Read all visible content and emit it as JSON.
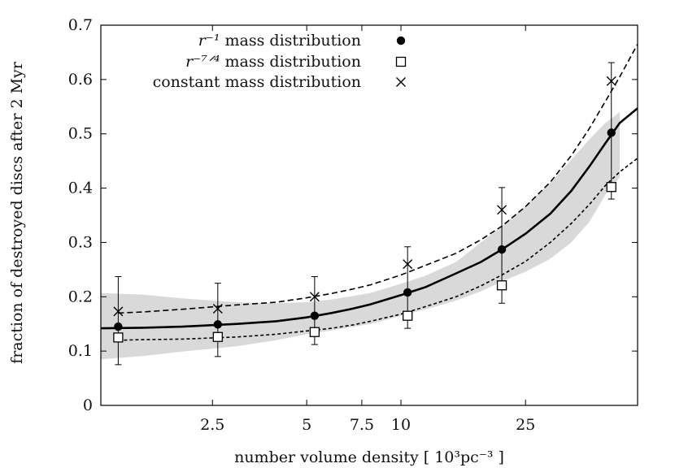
{
  "chart_data": {
    "type": "scatter",
    "title": "",
    "xlabel": "number volume density [ 10³pc⁻³ ]",
    "ylabel": "fraction of destroyed discs after 2 Myr",
    "x_scale": "log",
    "xlim": [
      1.1,
      57
    ],
    "ylim": [
      0,
      0.7
    ],
    "x_ticks": [
      2.5,
      5,
      7.5,
      10,
      25
    ],
    "x_tick_labels": [
      "2.5",
      "5",
      "7.5",
      "10",
      "25"
    ],
    "y_ticks": [
      0,
      0.1,
      0.2,
      0.3,
      0.4,
      0.5,
      0.6,
      0.7
    ],
    "y_tick_labels": [
      "0",
      "0.1",
      "0.2",
      "0.3",
      "0.4",
      "0.5",
      "0.6",
      "0.7"
    ],
    "grid": false,
    "legend_position": "top-left",
    "legend": [
      {
        "label_math": "r⁻¹",
        "label_text": "mass distribution",
        "marker": "filled-circle"
      },
      {
        "label_math": "r⁻⁷ᐟ⁴",
        "label_text": "mass distribution",
        "marker": "open-square"
      },
      {
        "label_math": "",
        "label_text": "constant mass distribution",
        "marker": "cross"
      }
    ],
    "series": [
      {
        "marker": "filled-circle",
        "points": [
          {
            "x": 1.25,
            "y": 0.145
          },
          {
            "x": 2.6,
            "y": 0.149
          },
          {
            "x": 5.3,
            "y": 0.165
          },
          {
            "x": 10.5,
            "y": 0.208
          },
          {
            "x": 21,
            "y": 0.287
          },
          {
            "x": 47,
            "y": 0.502
          }
        ]
      },
      {
        "marker": "open-square",
        "points": [
          {
            "x": 1.25,
            "y": 0.125
          },
          {
            "x": 2.6,
            "y": 0.126
          },
          {
            "x": 5.3,
            "y": 0.135
          },
          {
            "x": 10.5,
            "y": 0.165
          },
          {
            "x": 21,
            "y": 0.221
          },
          {
            "x": 47,
            "y": 0.402
          }
        ]
      },
      {
        "marker": "cross",
        "points": [
          {
            "x": 1.25,
            "y": 0.173,
            "err_low": 0.075,
            "err_high": 0.237
          },
          {
            "x": 2.6,
            "y": 0.178,
            "err_low": 0.09,
            "err_high": 0.225
          },
          {
            "x": 5.3,
            "y": 0.2,
            "err_low": 0.112,
            "err_high": 0.237
          },
          {
            "x": 10.5,
            "y": 0.26,
            "err_low": 0.142,
            "err_high": 0.292
          },
          {
            "x": 21,
            "y": 0.36,
            "err_low": 0.188,
            "err_high": 0.401
          },
          {
            "x": 47,
            "y": 0.597,
            "err_low": 0.38,
            "err_high": 0.631
          }
        ]
      }
    ],
    "fit_curves": [
      {
        "style": "solid",
        "points": [
          [
            1.1,
            0.142
          ],
          [
            1.5,
            0.143
          ],
          [
            2,
            0.145
          ],
          [
            3,
            0.15
          ],
          [
            4,
            0.155
          ],
          [
            5,
            0.162
          ],
          [
            6,
            0.17
          ],
          [
            7,
            0.178
          ],
          [
            8,
            0.186
          ],
          [
            10,
            0.203
          ],
          [
            12,
            0.218
          ],
          [
            15,
            0.243
          ],
          [
            18,
            0.264
          ],
          [
            21,
            0.287
          ],
          [
            25,
            0.316
          ],
          [
            30,
            0.353
          ],
          [
            35,
            0.395
          ],
          [
            40,
            0.44
          ],
          [
            45,
            0.483
          ],
          [
            50,
            0.52
          ],
          [
            57,
            0.547
          ]
        ]
      },
      {
        "style": "dashed",
        "points": [
          [
            1.25,
            0.17
          ],
          [
            1.5,
            0.172
          ],
          [
            2,
            0.177
          ],
          [
            3,
            0.185
          ],
          [
            4,
            0.19
          ],
          [
            5,
            0.198
          ],
          [
            6,
            0.206
          ],
          [
            7,
            0.214
          ],
          [
            8,
            0.222
          ],
          [
            10,
            0.24
          ],
          [
            12,
            0.258
          ],
          [
            15,
            0.28
          ],
          [
            18,
            0.305
          ],
          [
            21,
            0.33
          ],
          [
            25,
            0.366
          ],
          [
            30,
            0.411
          ],
          [
            35,
            0.46
          ],
          [
            40,
            0.51
          ],
          [
            45,
            0.56
          ],
          [
            50,
            0.605
          ],
          [
            57,
            0.665
          ]
        ]
      },
      {
        "style": "dotted",
        "points": [
          [
            1.25,
            0.12
          ],
          [
            1.5,
            0.121
          ],
          [
            2,
            0.122
          ],
          [
            3,
            0.126
          ],
          [
            4,
            0.131
          ],
          [
            5,
            0.137
          ],
          [
            6,
            0.142
          ],
          [
            7,
            0.148
          ],
          [
            8,
            0.155
          ],
          [
            10,
            0.168
          ],
          [
            12,
            0.182
          ],
          [
            15,
            0.2
          ],
          [
            18,
            0.22
          ],
          [
            21,
            0.24
          ],
          [
            25,
            0.265
          ],
          [
            30,
            0.3
          ],
          [
            35,
            0.335
          ],
          [
            40,
            0.37
          ],
          [
            45,
            0.405
          ],
          [
            50,
            0.43
          ],
          [
            57,
            0.455
          ]
        ]
      }
    ],
    "band": {
      "upper": [
        [
          1.1,
          0.207
        ],
        [
          1.5,
          0.204
        ],
        [
          2,
          0.197
        ],
        [
          3,
          0.19
        ],
        [
          4,
          0.188
        ],
        [
          5,
          0.19
        ],
        [
          6,
          0.195
        ],
        [
          8,
          0.207
        ],
        [
          10,
          0.224
        ],
        [
          12,
          0.239
        ],
        [
          15,
          0.264
        ],
        [
          18,
          0.3
        ],
        [
          21,
          0.33
        ],
        [
          25,
          0.367
        ],
        [
          30,
          0.41
        ],
        [
          35,
          0.452
        ],
        [
          40,
          0.49
        ],
        [
          45,
          0.52
        ],
        [
          50,
          0.54
        ]
      ],
      "lower": [
        [
          1.1,
          0.085
        ],
        [
          1.5,
          0.091
        ],
        [
          2,
          0.099
        ],
        [
          3,
          0.109
        ],
        [
          4,
          0.12
        ],
        [
          5,
          0.131
        ],
        [
          6,
          0.138
        ],
        [
          8,
          0.15
        ],
        [
          10,
          0.165
        ],
        [
          12,
          0.177
        ],
        [
          15,
          0.193
        ],
        [
          18,
          0.21
        ],
        [
          21,
          0.228
        ],
        [
          25,
          0.246
        ],
        [
          30,
          0.27
        ],
        [
          35,
          0.3
        ],
        [
          40,
          0.338
        ],
        [
          45,
          0.388
        ],
        [
          50,
          0.42
        ]
      ]
    }
  }
}
